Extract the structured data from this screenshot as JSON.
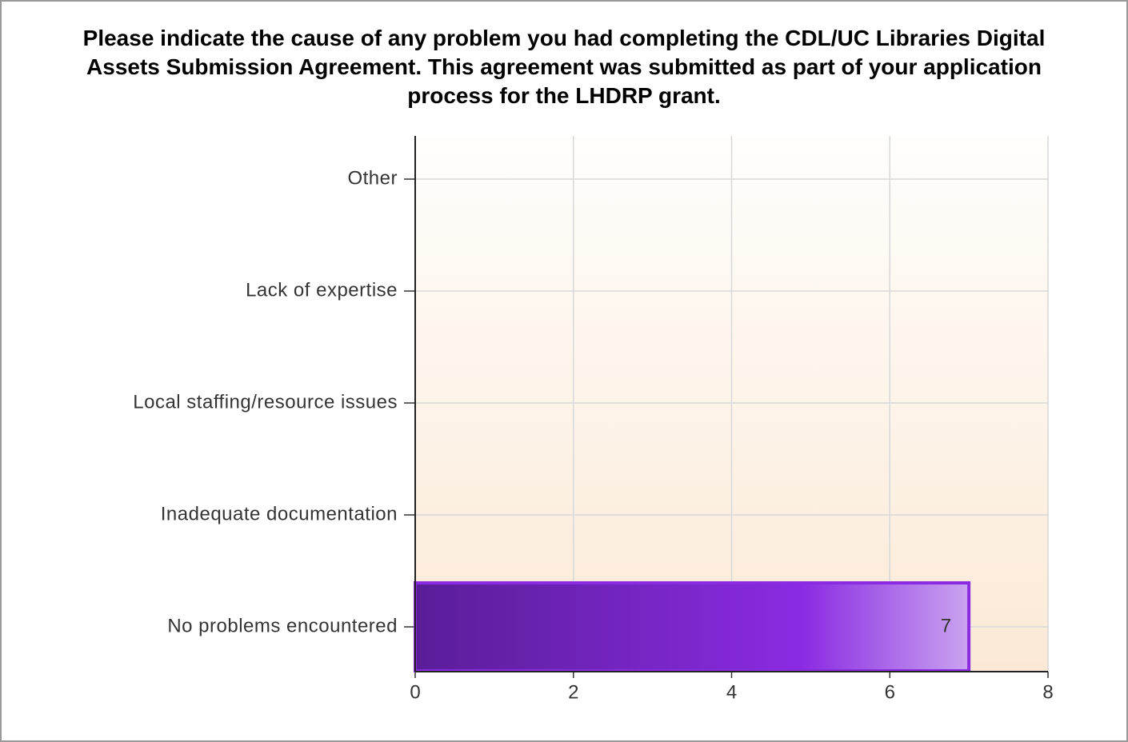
{
  "chart_data": {
    "type": "hbar",
    "title": "Please indicate the cause of any problem you had completing the CDL/UC Libraries Digital Assets Submission Agreement. This agreement was submitted as part of your application process for the LHDRP grant.",
    "categories": [
      "Other",
      "Lack of expertise",
      "Local staffing/resource issues",
      "Inadequate documentation",
      "No problems encountered"
    ],
    "values": [
      0,
      0,
      0,
      0,
      7
    ],
    "color": "#8a2be2",
    "xlim": [
      0,
      8
    ],
    "xticks": [
      0,
      2,
      4,
      6,
      8
    ],
    "grid": true
  }
}
